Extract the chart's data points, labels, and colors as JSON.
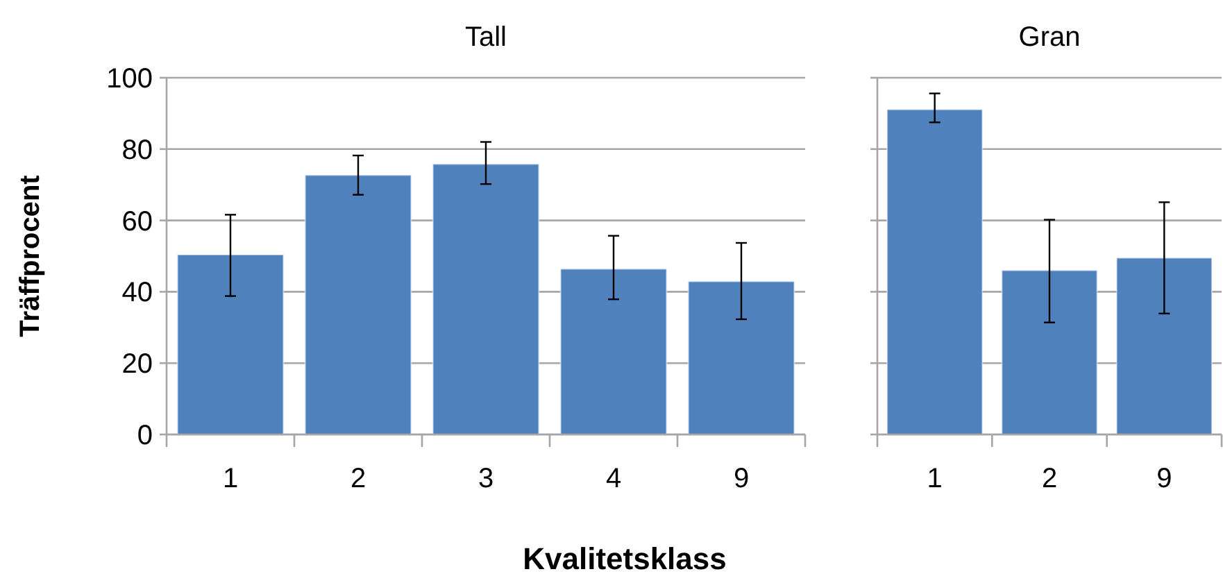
{
  "chart_data": [
    {
      "type": "bar",
      "title": "Tall",
      "xlabel": "Kvalitetsklass",
      "ylabel": "Träffprocent",
      "categories": [
        "1",
        "2",
        "3",
        "4",
        "9"
      ],
      "values": [
        50.4,
        72.7,
        75.8,
        46.4,
        42.9
      ],
      "errors": [
        [
          38.8,
          61.6
        ],
        [
          67.2,
          78.2
        ],
        [
          70.2,
          82.0
        ],
        [
          37.9,
          55.7
        ],
        [
          32.3,
          53.7
        ]
      ],
      "color": "#4f81bd",
      "ylim": [
        0,
        100
      ],
      "yticks": [
        0,
        20,
        40,
        60,
        80,
        100
      ],
      "grid": "y"
    },
    {
      "type": "bar",
      "title": "Gran",
      "categories": [
        "1",
        "2",
        "9"
      ],
      "values": [
        91.1,
        46.0,
        49.5
      ],
      "errors": [
        [
          87.5,
          95.6
        ],
        [
          31.4,
          60.2
        ],
        [
          33.9,
          65.1
        ]
      ],
      "color": "#4f81bd",
      "ylim": [
        0,
        100
      ],
      "yticks": [
        0,
        20,
        40,
        60,
        80,
        100
      ],
      "grid": "y",
      "tick_labels": "x"
    }
  ]
}
